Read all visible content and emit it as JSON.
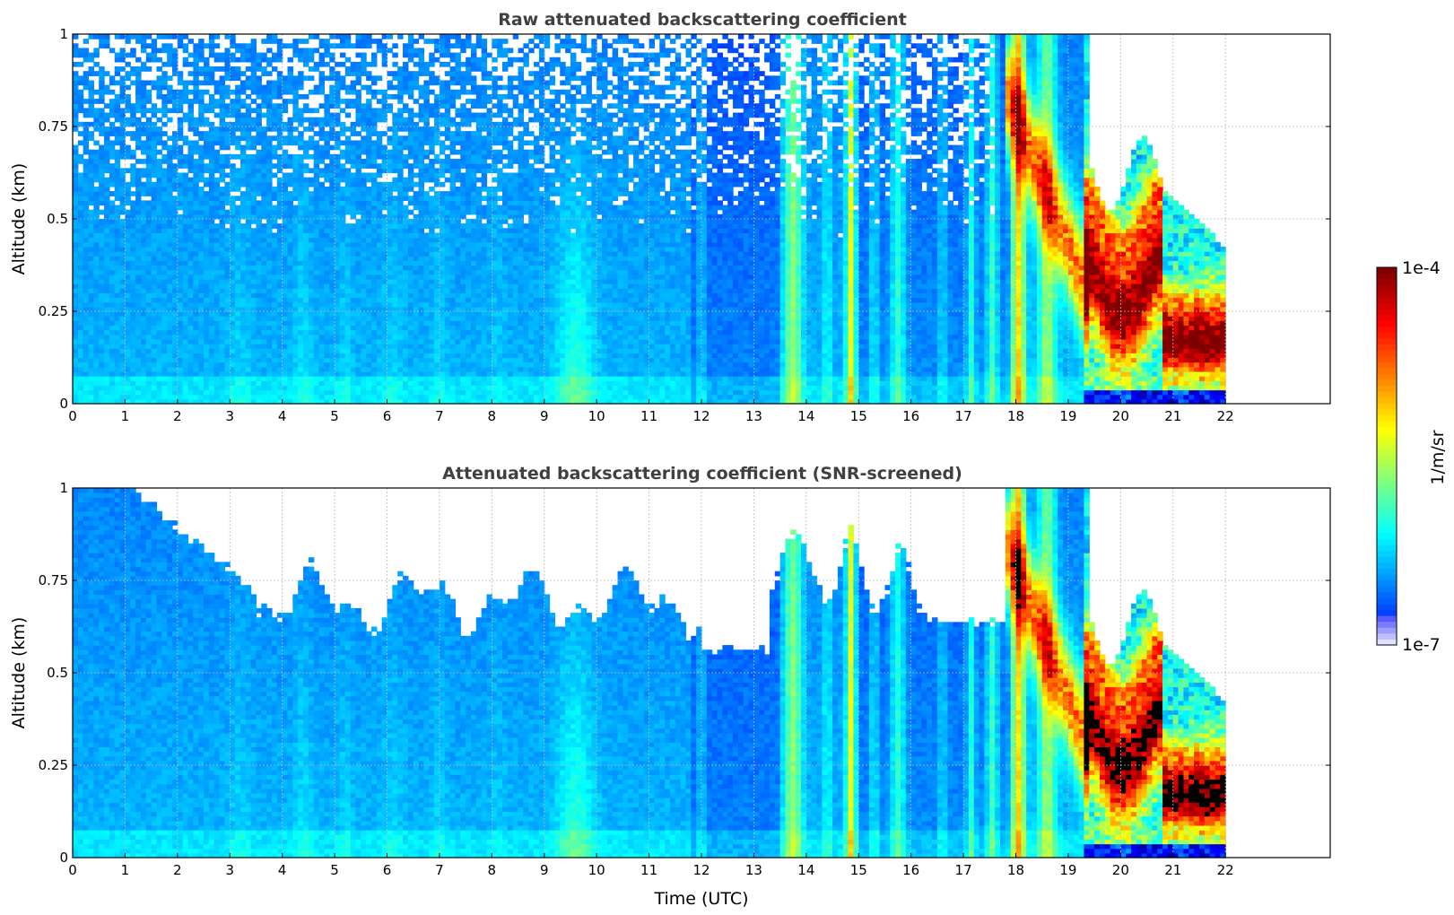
{
  "chart_data": [
    {
      "type": "heatmap",
      "title": "Raw attenuated backscattering coefficient",
      "xlabel": "",
      "ylabel": "Altitude (km)",
      "xlim": [
        0,
        24
      ],
      "ylim": [
        0,
        1
      ],
      "x_ticks": [
        0,
        1,
        2,
        3,
        4,
        5,
        6,
        7,
        8,
        9,
        10,
        11,
        12,
        13,
        14,
        15,
        16,
        17,
        18,
        19,
        20,
        21,
        22
      ],
      "y_ticks": [
        0,
        0.25,
        0.5,
        0.75,
        1
      ],
      "y_tick_labels": [
        "0",
        "0.25",
        "0.5",
        "0.75",
        "1"
      ],
      "grid": true,
      "screened": false,
      "data_end_time": 22,
      "colormap": "jet",
      "colorbar_range": [
        "1e-7",
        "1e-4"
      ],
      "colorbar_label": "1/m/sr"
    },
    {
      "type": "heatmap",
      "title": "Attenuated backscattering coefficient (SNR-screened)",
      "xlabel": "Time (UTC)",
      "ylabel": "Altitude (km)",
      "xlim": [
        0,
        24
      ],
      "ylim": [
        0,
        1
      ],
      "x_ticks": [
        0,
        1,
        2,
        3,
        4,
        5,
        6,
        7,
        8,
        9,
        10,
        11,
        12,
        13,
        14,
        15,
        16,
        17,
        18,
        19,
        20,
        21,
        22
      ],
      "y_ticks": [
        0,
        0.25,
        0.5,
        0.75,
        1
      ],
      "y_tick_labels": [
        "0",
        "0.25",
        "0.5",
        "0.75",
        "1"
      ],
      "grid": true,
      "screened": true,
      "data_end_time": 22,
      "colormap": "jet",
      "colorbar_range": [
        "1e-7",
        "1e-4"
      ],
      "colorbar_label": "1/m/sr"
    }
  ],
  "colorbar": {
    "max_label": "1e-4",
    "min_label": "1e-7",
    "unit_label": "1/m/sr"
  }
}
